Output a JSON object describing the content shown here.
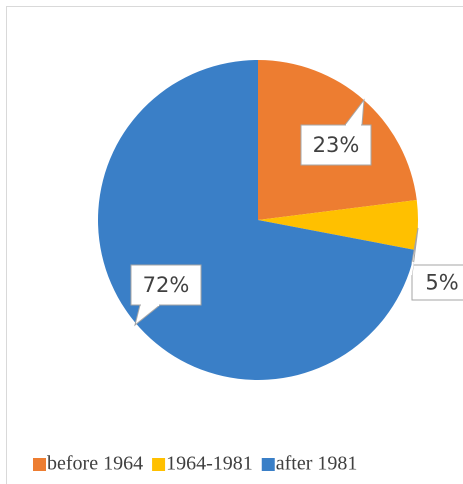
{
  "chart_data": {
    "type": "pie",
    "categories": [
      "before 1964",
      "1964-1981",
      "after 1981"
    ],
    "values": [
      23,
      5,
      72
    ],
    "value_labels": [
      "23%",
      "5%",
      "72%"
    ],
    "colors": [
      "#ed7d31",
      "#ffc000",
      "#3a7fc7"
    ],
    "legend": "bottom"
  }
}
